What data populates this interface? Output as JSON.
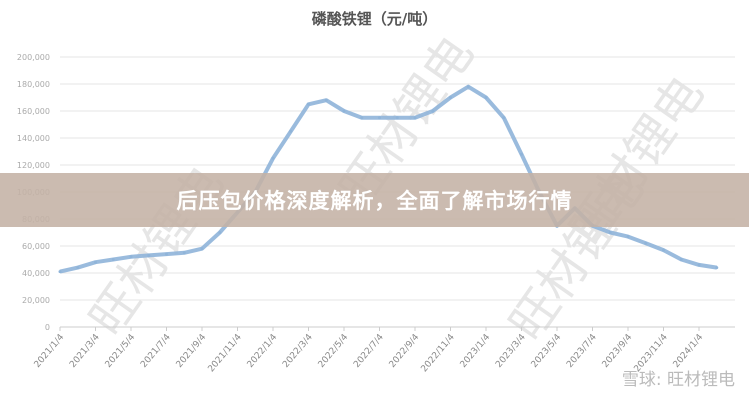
{
  "chart_data": {
    "type": "line",
    "title": "磷酸铁锂（元/吨）",
    "xlabel": "",
    "ylabel": "",
    "ylim": [
      0,
      200000
    ],
    "yticks": [
      "0",
      "20,000",
      "40,000",
      "60,000",
      "80,000",
      "100,000",
      "120,000",
      "140,000",
      "160,000",
      "180,000",
      "200,000"
    ],
    "xticks": [
      "2021/1/4",
      "2021/3/4",
      "2021/5/4",
      "2021/7/4",
      "2021/9/4",
      "2021/11/4",
      "2022/1/4",
      "2022/3/4",
      "2022/5/4",
      "2022/7/4",
      "2022/9/4",
      "2022/11/4",
      "2023/1/4",
      "2023/3/4",
      "2023/5/4",
      "2023/7/4",
      "2023/9/4",
      "2023/11/4",
      "2024/1/4"
    ],
    "grid": true,
    "color": "#8fb4d9",
    "series": [
      {
        "x": [
          "2021/1/4",
          "2021/2/4",
          "2021/3/4",
          "2021/4/4",
          "2021/5/4",
          "2021/6/4",
          "2021/7/4",
          "2021/8/4",
          "2021/9/4",
          "2021/10/4",
          "2021/11/4",
          "2021/12/4",
          "2022/1/4",
          "2022/2/4",
          "2022/3/4",
          "2022/4/4",
          "2022/5/4",
          "2022/6/4",
          "2022/7/4",
          "2022/8/4",
          "2022/9/4",
          "2022/10/4",
          "2022/11/4",
          "2022/12/4",
          "2023/1/4",
          "2023/2/4",
          "2023/3/4",
          "2023/4/4",
          "2023/5/4",
          "2023/6/4",
          "2023/7/4",
          "2023/8/4",
          "2023/9/4",
          "2023/10/4",
          "2023/11/4",
          "2023/12/4",
          "2024/1/4",
          "2024/2/4"
        ],
        "y": [
          41000,
          44000,
          48000,
          50000,
          52000,
          53000,
          54000,
          55000,
          58000,
          70000,
          85000,
          100000,
          125000,
          145000,
          165000,
          168000,
          160000,
          155000,
          155000,
          155000,
          155000,
          160000,
          170000,
          178000,
          170000,
          155000,
          128000,
          100000,
          75000,
          88000,
          75000,
          70000,
          67000,
          62000,
          57000,
          50000,
          46000,
          44000
        ]
      }
    ]
  },
  "banner": {
    "text": "后压包价格深度解析，全面了解市场行情"
  },
  "watermark": {
    "text": "旺材锂电",
    "credit": "雪球: 旺材锂电"
  }
}
